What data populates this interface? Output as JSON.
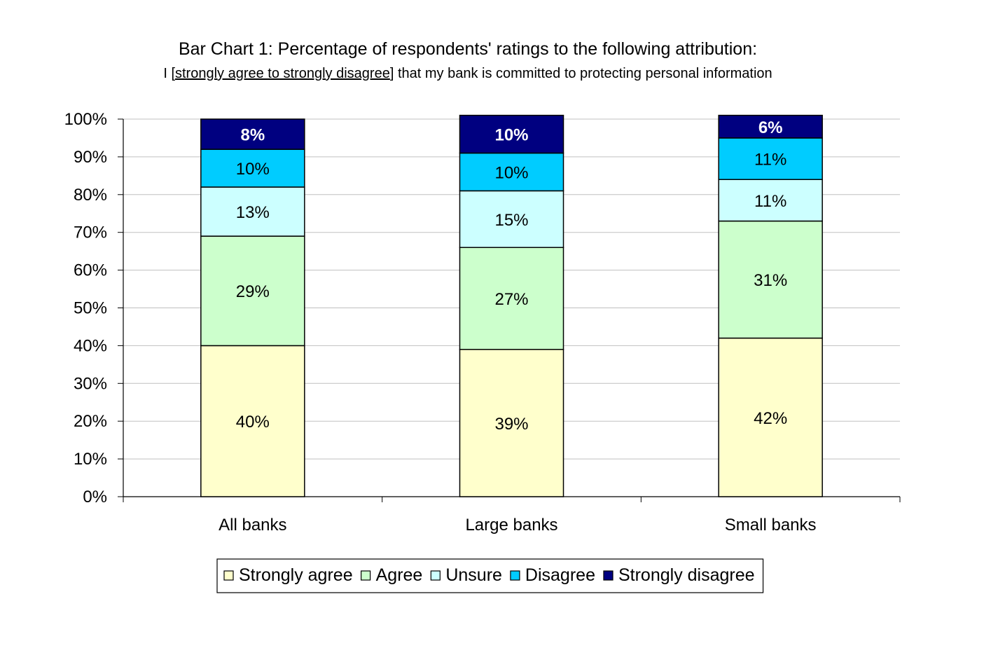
{
  "chart_data": {
    "type": "bar",
    "stacked": true,
    "title": "Bar Chart 1: Percentage of respondents' ratings to the following attribution:",
    "subtitle": {
      "prefix": "I [",
      "underlined": "strongly agree to strongly disagree",
      "suffix": "] that my bank is committed to protecting personal information"
    },
    "categories": [
      "All banks",
      "Large banks",
      "Small banks"
    ],
    "series": [
      {
        "name": "Strongly agree",
        "color": "#FFFFCC",
        "values": [
          40,
          39,
          42
        ],
        "labels": [
          "40%",
          "39%",
          "42%"
        ],
        "label_color": "#000000",
        "label_bold": false
      },
      {
        "name": "Agree",
        "color": "#CCFFCC",
        "values": [
          29,
          27,
          31
        ],
        "labels": [
          "29%",
          "27%",
          "31%"
        ],
        "label_color": "#000000",
        "label_bold": false
      },
      {
        "name": "Unsure",
        "color": "#CCFFFF",
        "values": [
          13,
          15,
          11
        ],
        "labels": [
          "13%",
          "15%",
          "11%"
        ],
        "label_color": "#000000",
        "label_bold": false
      },
      {
        "name": "Disagree",
        "color": "#00CCFF",
        "values": [
          10,
          10,
          11
        ],
        "labels": [
          "10%",
          "10%",
          "11%"
        ],
        "label_color": "#000000",
        "label_bold": false
      },
      {
        "name": "Strongly disagree",
        "color": "#000080",
        "values": [
          8,
          10,
          6
        ],
        "labels": [
          "8%",
          "10%",
          "6%"
        ],
        "label_color": "#FFFFFF",
        "label_bold": true
      }
    ],
    "ylim": [
      0,
      100
    ],
    "yticks": [
      "0%",
      "10%",
      "20%",
      "30%",
      "40%",
      "50%",
      "60%",
      "70%",
      "80%",
      "90%",
      "100%"
    ],
    "grid": true,
    "legend_position": "bottom"
  }
}
